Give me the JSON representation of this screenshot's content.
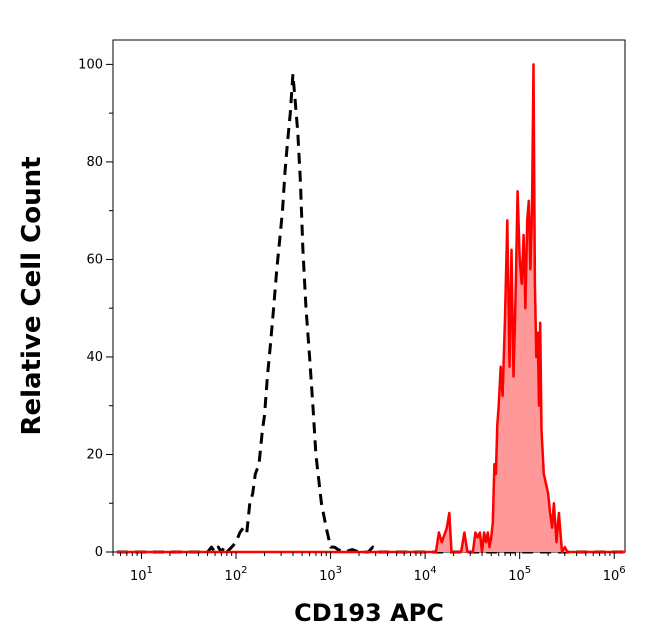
{
  "chart_data": {
    "type": "area",
    "title": "",
    "xlabel": "CD193 APC",
    "ylabel": "Relative Cell Count",
    "xscale": "log",
    "xlim": [
      5,
      1300000
    ],
    "ylim": [
      0,
      105
    ],
    "x_ticks": [
      {
        "base": "10",
        "exp": "1",
        "value": 10
      },
      {
        "base": "10",
        "exp": "2",
        "value": 100
      },
      {
        "base": "10",
        "exp": "3",
        "value": 1000
      },
      {
        "base": "10",
        "exp": "4",
        "value": 10000
      },
      {
        "base": "10",
        "exp": "5",
        "value": 100000
      },
      {
        "base": "10",
        "exp": "6",
        "value": 1000000
      }
    ],
    "y_ticks": [
      {
        "label": "0",
        "value": 0
      },
      {
        "label": "20",
        "value": 20
      },
      {
        "label": "40",
        "value": 40
      },
      {
        "label": "60",
        "value": 60
      },
      {
        "label": "80",
        "value": 80
      },
      {
        "label": "100",
        "value": 100
      }
    ],
    "grid": false,
    "legend": "none",
    "series": [
      {
        "style": "dashed",
        "color": "#000000",
        "fill": "none",
        "x": [
          5.5,
          10,
          20,
          40,
          50,
          55,
          60,
          65,
          70,
          75,
          80,
          90,
          100,
          110,
          120,
          130,
          140,
          150,
          160,
          175,
          190,
          200,
          215,
          230,
          250,
          270,
          290,
          310,
          330,
          350,
          375,
          400,
          425,
          450,
          480,
          510,
          550,
          600,
          650,
          700,
          800,
          900,
          1000,
          1100,
          1200,
          1400,
          1700,
          2000,
          2500,
          2800,
          3100,
          4000,
          6000,
          10000,
          20000,
          100000,
          1000000,
          1300000
        ],
        "y": [
          0,
          0,
          0,
          0,
          0,
          1,
          0,
          1,
          0,
          1,
          0,
          1,
          2,
          4,
          5,
          4,
          10,
          12,
          16,
          18,
          25,
          28,
          36,
          42,
          50,
          58,
          64,
          70,
          78,
          84,
          90,
          98,
          92,
          86,
          76,
          62,
          50,
          40,
          30,
          20,
          10,
          5,
          1,
          1,
          0.5,
          0,
          0.5,
          0,
          0,
          1,
          0,
          0,
          0,
          0,
          0,
          0,
          0,
          0
        ]
      },
      {
        "style": "solid",
        "color": "#ff0000",
        "fill": "#ff9999",
        "x": [
          5.5,
          100,
          1000,
          10000,
          13000,
          14000,
          15000,
          17000,
          18000,
          19000,
          24000,
          26000,
          28000,
          32000,
          34000,
          36000,
          38000,
          40000,
          42000,
          44000,
          46000,
          48000,
          50000,
          52000,
          54000,
          56000,
          58000,
          60000,
          63000,
          66000,
          70000,
          74000,
          78000,
          82000,
          86000,
          90000,
          95000,
          100000,
          105000,
          110000,
          115000,
          120000,
          125000,
          130000,
          135000,
          140000,
          145000,
          150000,
          155000,
          160000,
          165000,
          170000,
          180000,
          190000,
          200000,
          210000,
          220000,
          230000,
          245000,
          260000,
          280000,
          300000,
          320000,
          400000,
          600000,
          1000000,
          1300000
        ],
        "y": [
          0,
          0,
          0,
          0,
          0,
          4,
          2,
          5,
          8,
          0,
          0,
          4,
          0,
          0,
          4,
          3,
          4,
          0,
          4,
          2,
          4,
          1,
          3,
          6,
          18,
          16,
          26,
          30,
          38,
          32,
          48,
          68,
          38,
          62,
          36,
          50,
          74,
          60,
          55,
          65,
          50,
          68,
          72,
          58,
          70,
          100,
          55,
          40,
          45,
          30,
          47,
          25,
          16,
          14,
          12,
          8,
          5,
          10,
          2,
          8,
          0,
          1,
          0,
          0,
          0,
          0,
          0
        ]
      }
    ]
  }
}
